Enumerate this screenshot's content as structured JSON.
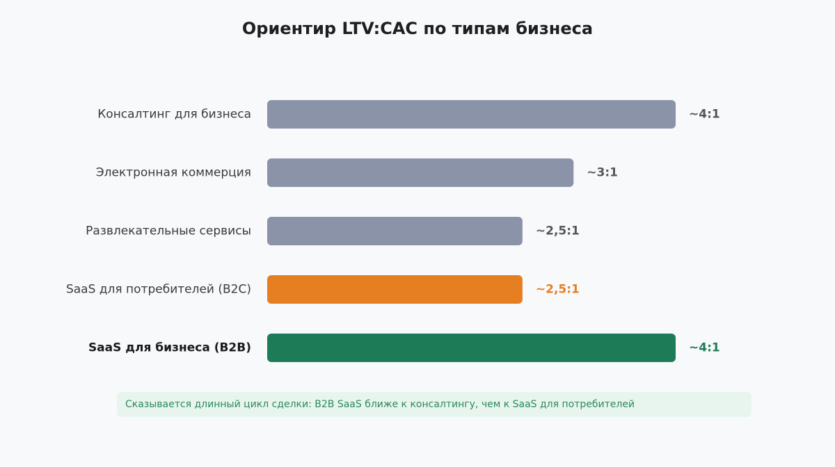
{
  "chart_data": {
    "type": "bar",
    "orientation": "horizontal",
    "title": "Ориентир LTV:CAC по типам бизнеса",
    "categories": [
      "Консалтинг для бизнеса",
      "Электронная коммерция",
      "Развлекательные сервисы",
      "SaaS для потребителей (B2C)",
      "SaaS для бизнеса (B2B)"
    ],
    "values": [
      4,
      3,
      2.5,
      2.5,
      4
    ],
    "value_labels": [
      "~4:1",
      "~3:1",
      "~2,5:1",
      "~2,5:1",
      "~4:1"
    ],
    "bar_colors": [
      "#8a93a8",
      "#8a93a8",
      "#8a93a8",
      "#e67e22",
      "#1e7b57"
    ],
    "value_label_colors": [
      "#555555",
      "#555555",
      "#555555",
      "#e67e22",
      "#1e7b57"
    ],
    "highlight_index": 4,
    "xlim": [
      0,
      4
    ],
    "grid": false,
    "note": "Сказывается длинный цикл сделки: B2B SaaS ближе к консалтингу, чем к SaaS для потребителей"
  }
}
